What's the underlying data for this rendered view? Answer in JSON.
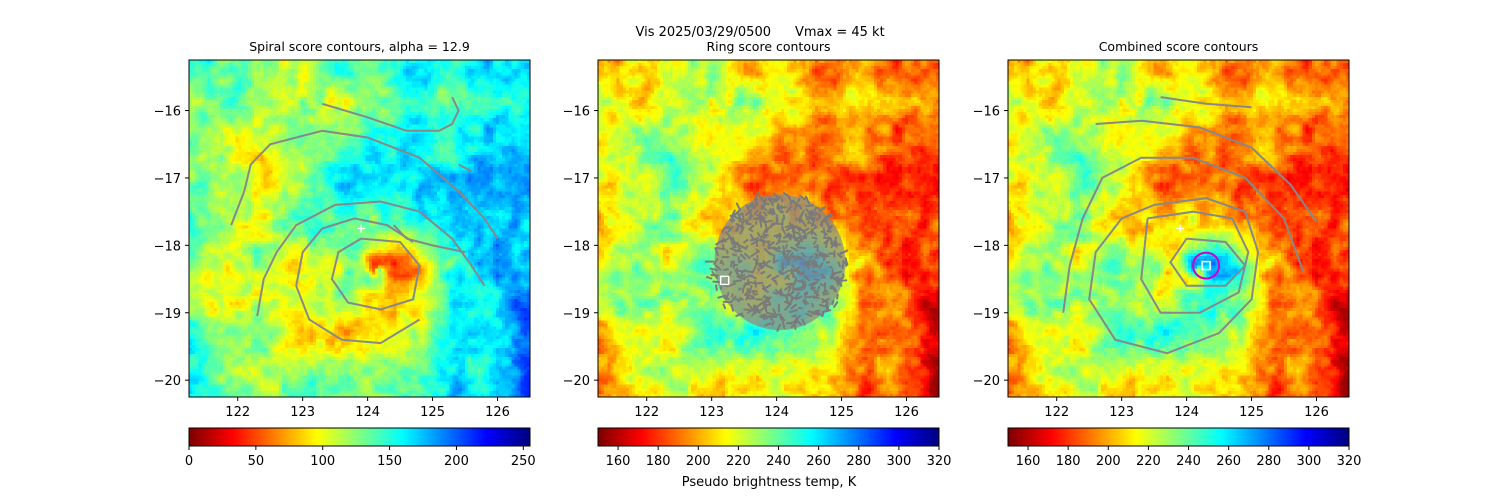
{
  "figure": {
    "suptitle_left": "Vis  2025/03/29/0500",
    "suptitle_right": "Vmax = 45 kt",
    "colorbar_label": "Pseudo brightness temp, K"
  },
  "chart_data": [
    {
      "type": "heatmap",
      "title": "Spiral score contours, alpha = 12.9",
      "xlim": [
        121.25,
        126.5
      ],
      "ylim": [
        -20.25,
        -15.25
      ],
      "xticks": [
        122,
        123,
        124,
        125,
        126
      ],
      "yticks": [
        -16,
        -17,
        -18,
        -19,
        -20
      ],
      "colormap": "jet",
      "colorbar": {
        "range": [
          0,
          255
        ],
        "ticks": [
          0,
          50,
          100,
          150,
          200,
          250
        ],
        "reversed": true
      },
      "markers": [
        {
          "kind": "plus",
          "x": 123.9,
          "y": -17.75,
          "color": "#ffffff"
        }
      ],
      "contours": [
        [
          [
            123.3,
            -15.9
          ],
          [
            124.0,
            -16.1
          ],
          [
            124.6,
            -16.3
          ],
          [
            125.1,
            -16.3
          ]
        ],
        [
          [
            125.1,
            -16.3
          ],
          [
            125.3,
            -16.2
          ],
          [
            125.4,
            -16.0
          ],
          [
            125.3,
            -15.8
          ]
        ],
        [
          [
            125.4,
            -16.8
          ],
          [
            125.6,
            -16.9
          ]
        ],
        [
          [
            121.9,
            -17.7
          ],
          [
            122.1,
            -17.2
          ],
          [
            122.2,
            -16.8
          ],
          [
            122.5,
            -16.5
          ],
          [
            123.3,
            -16.3
          ],
          [
            124.0,
            -16.4
          ],
          [
            124.8,
            -16.7
          ],
          [
            125.4,
            -17.2
          ],
          [
            125.8,
            -17.6
          ],
          [
            126.0,
            -17.9
          ]
        ],
        [
          [
            122.3,
            -19.05
          ],
          [
            122.4,
            -18.5
          ],
          [
            122.6,
            -18.1
          ],
          [
            122.9,
            -17.7
          ],
          [
            123.5,
            -17.4
          ],
          [
            124.2,
            -17.35
          ],
          [
            124.8,
            -17.5
          ],
          [
            125.3,
            -17.9
          ],
          [
            125.6,
            -18.3
          ],
          [
            125.8,
            -18.6
          ]
        ],
        [
          [
            124.6,
            -17.9
          ],
          [
            125.0,
            -18.0
          ],
          [
            125.5,
            -18.1
          ]
        ],
        [
          [
            124.8,
            -19.1
          ],
          [
            124.2,
            -19.45
          ],
          [
            123.6,
            -19.4
          ],
          [
            123.1,
            -19.1
          ],
          [
            122.9,
            -18.6
          ],
          [
            123.0,
            -18.1
          ],
          [
            123.3,
            -17.75
          ],
          [
            123.8,
            -17.6
          ],
          [
            124.3,
            -17.7
          ],
          [
            124.7,
            -17.95
          ]
        ],
        [
          [
            124.4,
            -17.7
          ],
          [
            124.6,
            -17.9
          ]
        ],
        [
          [
            123.9,
            -17.9
          ],
          [
            124.5,
            -17.95
          ],
          [
            124.8,
            -18.3
          ],
          [
            124.7,
            -18.8
          ],
          [
            124.2,
            -18.95
          ],
          [
            123.7,
            -18.85
          ],
          [
            123.45,
            -18.5
          ],
          [
            123.55,
            -18.1
          ],
          [
            123.9,
            -17.9
          ]
        ]
      ]
    },
    {
      "type": "heatmap",
      "title": "Ring score contours",
      "xlim": [
        121.25,
        126.5
      ],
      "ylim": [
        -20.25,
        -15.25
      ],
      "xticks": [
        122,
        123,
        124,
        125,
        126
      ],
      "yticks": [
        -16,
        -17,
        -18,
        -19,
        -20
      ],
      "colormap": "jet",
      "colorbar": {
        "range": [
          150,
          320
        ],
        "ticks": [
          160,
          180,
          200,
          220,
          240,
          260,
          280,
          300,
          320
        ],
        "reversed": true
      },
      "markers": [
        {
          "kind": "square",
          "x": 123.2,
          "y": -18.52,
          "color": "#ffffff"
        }
      ],
      "contour_region": {
        "center": [
          124.05,
          -18.25
        ],
        "radius_x": 1.05,
        "radius_y": 1.05
      },
      "contours": []
    },
    {
      "type": "heatmap",
      "title": "Combined score contours",
      "xlim": [
        121.25,
        126.5
      ],
      "ylim": [
        -20.25,
        -15.25
      ],
      "xticks": [
        122,
        123,
        124,
        125,
        126
      ],
      "yticks": [
        -16,
        -17,
        -18,
        -19,
        -20
      ],
      "colormap": "jet",
      "colorbar": {
        "range": [
          150,
          320
        ],
        "ticks": [
          160,
          180,
          200,
          220,
          240,
          260,
          280,
          300,
          320
        ],
        "reversed": true
      },
      "markers": [
        {
          "kind": "plus",
          "x": 123.9,
          "y": -17.75,
          "color": "#ffffff"
        },
        {
          "kind": "square",
          "x": 124.3,
          "y": -18.3,
          "color": "#ffffff"
        },
        {
          "kind": "circle",
          "x": 124.3,
          "y": -18.3,
          "r": 0.2,
          "color": "#cc00cc"
        }
      ],
      "contours": [
        [
          [
            123.6,
            -15.8
          ],
          [
            124.3,
            -15.9
          ],
          [
            125.0,
            -15.95
          ]
        ],
        [
          [
            122.6,
            -16.2
          ],
          [
            123.3,
            -16.15
          ],
          [
            124.2,
            -16.25
          ],
          [
            125.0,
            -16.55
          ],
          [
            125.6,
            -17.1
          ],
          [
            126.0,
            -17.65
          ]
        ],
        [
          [
            122.1,
            -19.0
          ],
          [
            122.2,
            -18.3
          ],
          [
            122.4,
            -17.6
          ],
          [
            122.7,
            -17.0
          ],
          [
            123.3,
            -16.7
          ],
          [
            124.1,
            -16.7
          ],
          [
            124.9,
            -17.0
          ],
          [
            125.5,
            -17.6
          ],
          [
            125.8,
            -18.4
          ]
        ],
        [
          [
            123.5,
            -17.4
          ],
          [
            124.3,
            -17.3
          ],
          [
            124.9,
            -17.5
          ],
          [
            125.1,
            -18.1
          ],
          [
            125.0,
            -18.8
          ],
          [
            124.5,
            -19.3
          ],
          [
            123.7,
            -19.6
          ],
          [
            122.9,
            -19.4
          ],
          [
            122.5,
            -18.8
          ],
          [
            122.6,
            -18.1
          ],
          [
            123.0,
            -17.6
          ],
          [
            123.5,
            -17.4
          ]
        ],
        [
          [
            123.4,
            -17.6
          ],
          [
            124.1,
            -17.5
          ],
          [
            124.7,
            -17.6
          ],
          [
            124.95,
            -18.1
          ],
          [
            124.8,
            -18.7
          ],
          [
            124.2,
            -19.0
          ],
          [
            123.6,
            -19.0
          ],
          [
            123.3,
            -18.5
          ],
          [
            123.4,
            -17.6
          ]
        ],
        [
          [
            124.0,
            -17.9
          ],
          [
            124.6,
            -17.95
          ],
          [
            124.9,
            -18.3
          ],
          [
            124.6,
            -18.6
          ],
          [
            124.0,
            -18.6
          ],
          [
            123.75,
            -18.25
          ],
          [
            124.0,
            -17.9
          ]
        ]
      ]
    }
  ]
}
